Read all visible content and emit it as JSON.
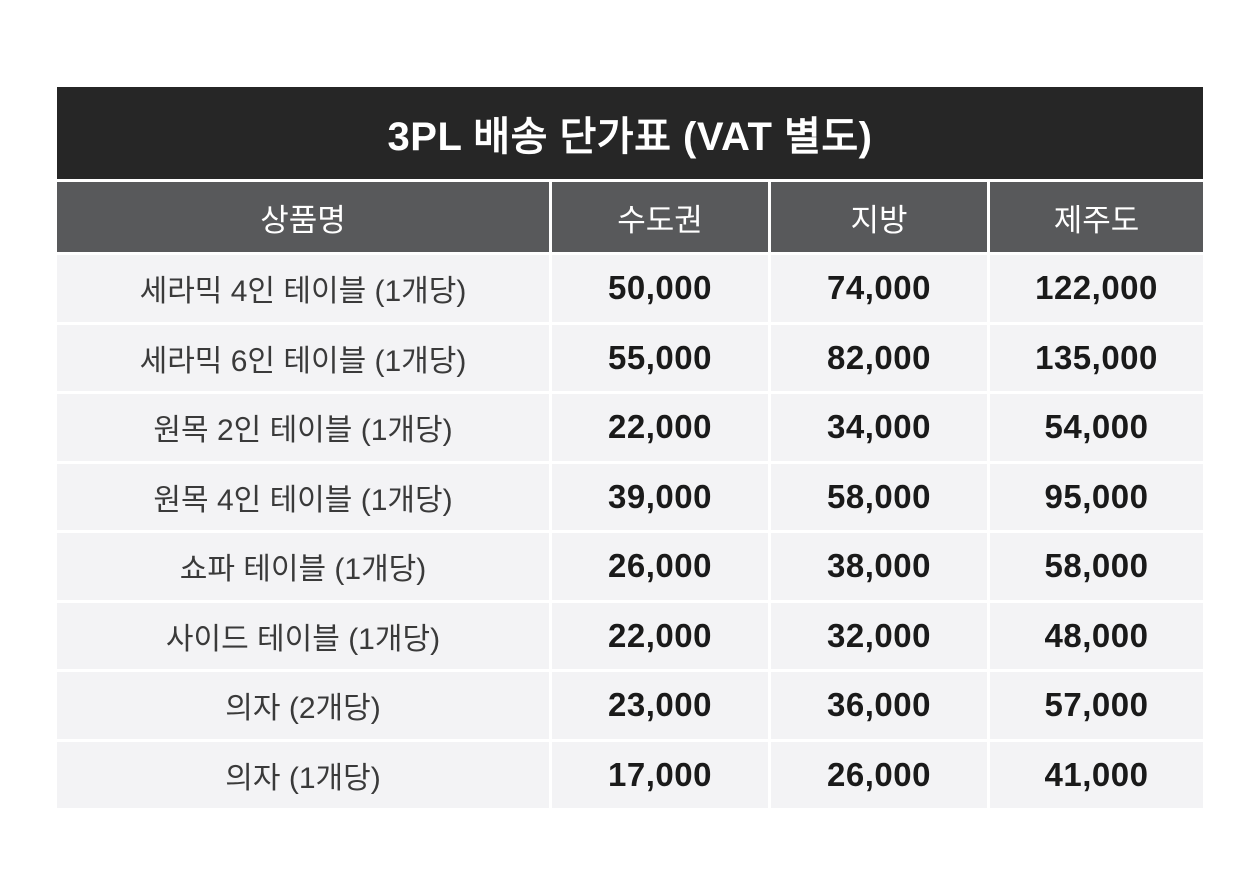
{
  "table": {
    "title": "3PL 배송 단가표 (VAT 별도)",
    "columns": [
      "상품명",
      "수도권",
      "지방",
      "제주도"
    ],
    "rows": [
      {
        "name": "세라믹 4인 테이블 (1개당)",
        "prices": [
          "50,000",
          "74,000",
          "122,000"
        ]
      },
      {
        "name": "세라믹 6인 테이블 (1개당)",
        "prices": [
          "55,000",
          "82,000",
          "135,000"
        ]
      },
      {
        "name": "원목 2인 테이블 (1개당)",
        "prices": [
          "22,000",
          "34,000",
          "54,000"
        ]
      },
      {
        "name": "원목 4인 테이블 (1개당)",
        "prices": [
          "39,000",
          "58,000",
          "95,000"
        ]
      },
      {
        "name": "쇼파 테이블 (1개당)",
        "prices": [
          "26,000",
          "38,000",
          "58,000"
        ]
      },
      {
        "name": "사이드 테이블 (1개당)",
        "prices": [
          "22,000",
          "32,000",
          "48,000"
        ]
      },
      {
        "name": "의자 (2개당)",
        "prices": [
          "23,000",
          "36,000",
          "57,000"
        ]
      },
      {
        "name": "의자 (1개당)",
        "prices": [
          "17,000",
          "26,000",
          "41,000"
        ]
      }
    ],
    "colors": {
      "title_bg": "#262626",
      "header_bg": "#58595b",
      "row_bg": "#f3f3f5",
      "gap": "#ffffff"
    }
  },
  "chart_data": {
    "type": "table",
    "title": "3PL 배송 단가표 (VAT 별도)",
    "categories": [
      "세라믹 4인 테이블 (1개당)",
      "세라믹 6인 테이블 (1개당)",
      "원목 2인 테이블 (1개당)",
      "원목 4인 테이블 (1개당)",
      "쇼파 테이블 (1개당)",
      "사이드 테이블 (1개당)",
      "의자 (2개당)",
      "의자 (1개당)"
    ],
    "series": [
      {
        "name": "수도권",
        "values": [
          50000,
          55000,
          22000,
          39000,
          26000,
          22000,
          23000,
          17000
        ]
      },
      {
        "name": "지방",
        "values": [
          74000,
          82000,
          34000,
          58000,
          38000,
          32000,
          36000,
          26000
        ]
      },
      {
        "name": "제주도",
        "values": [
          122000,
          135000,
          54000,
          95000,
          58000,
          48000,
          57000,
          41000
        ]
      }
    ]
  }
}
